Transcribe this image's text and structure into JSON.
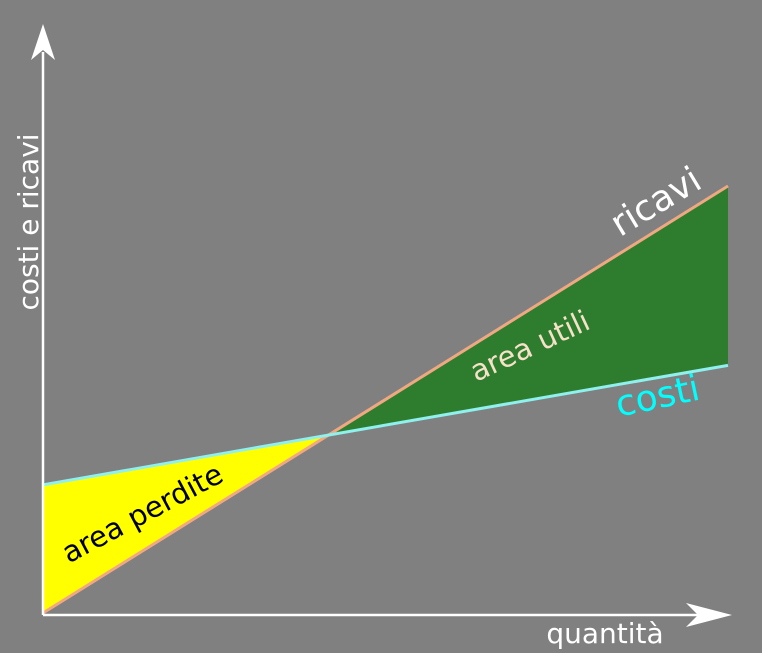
{
  "chart_data": {
    "type": "line",
    "title": "",
    "xlabel": "quantità",
    "ylabel": "costi e ricavi",
    "series": [
      {
        "name": "ricavi",
        "x": [
          0,
          100
        ],
        "y": [
          0,
          100
        ]
      },
      {
        "name": "costi",
        "x": [
          0,
          100
        ],
        "y": [
          30,
          58
        ]
      }
    ],
    "annotations": {
      "loss_area": "area perdite",
      "profit_area": "area utili"
    },
    "colors": {
      "background": "#808080",
      "axes": "#ffffff",
      "ricavi_line": "#f0a882",
      "costi_line": "#8ff0ee",
      "ricavi_label": "#ffffff",
      "costi_label": "#00ffff",
      "loss_fill": "#ffff00",
      "profit_fill": "#2e7d2e",
      "loss_label": "#000000",
      "profit_label": "#f5e2c8"
    }
  }
}
